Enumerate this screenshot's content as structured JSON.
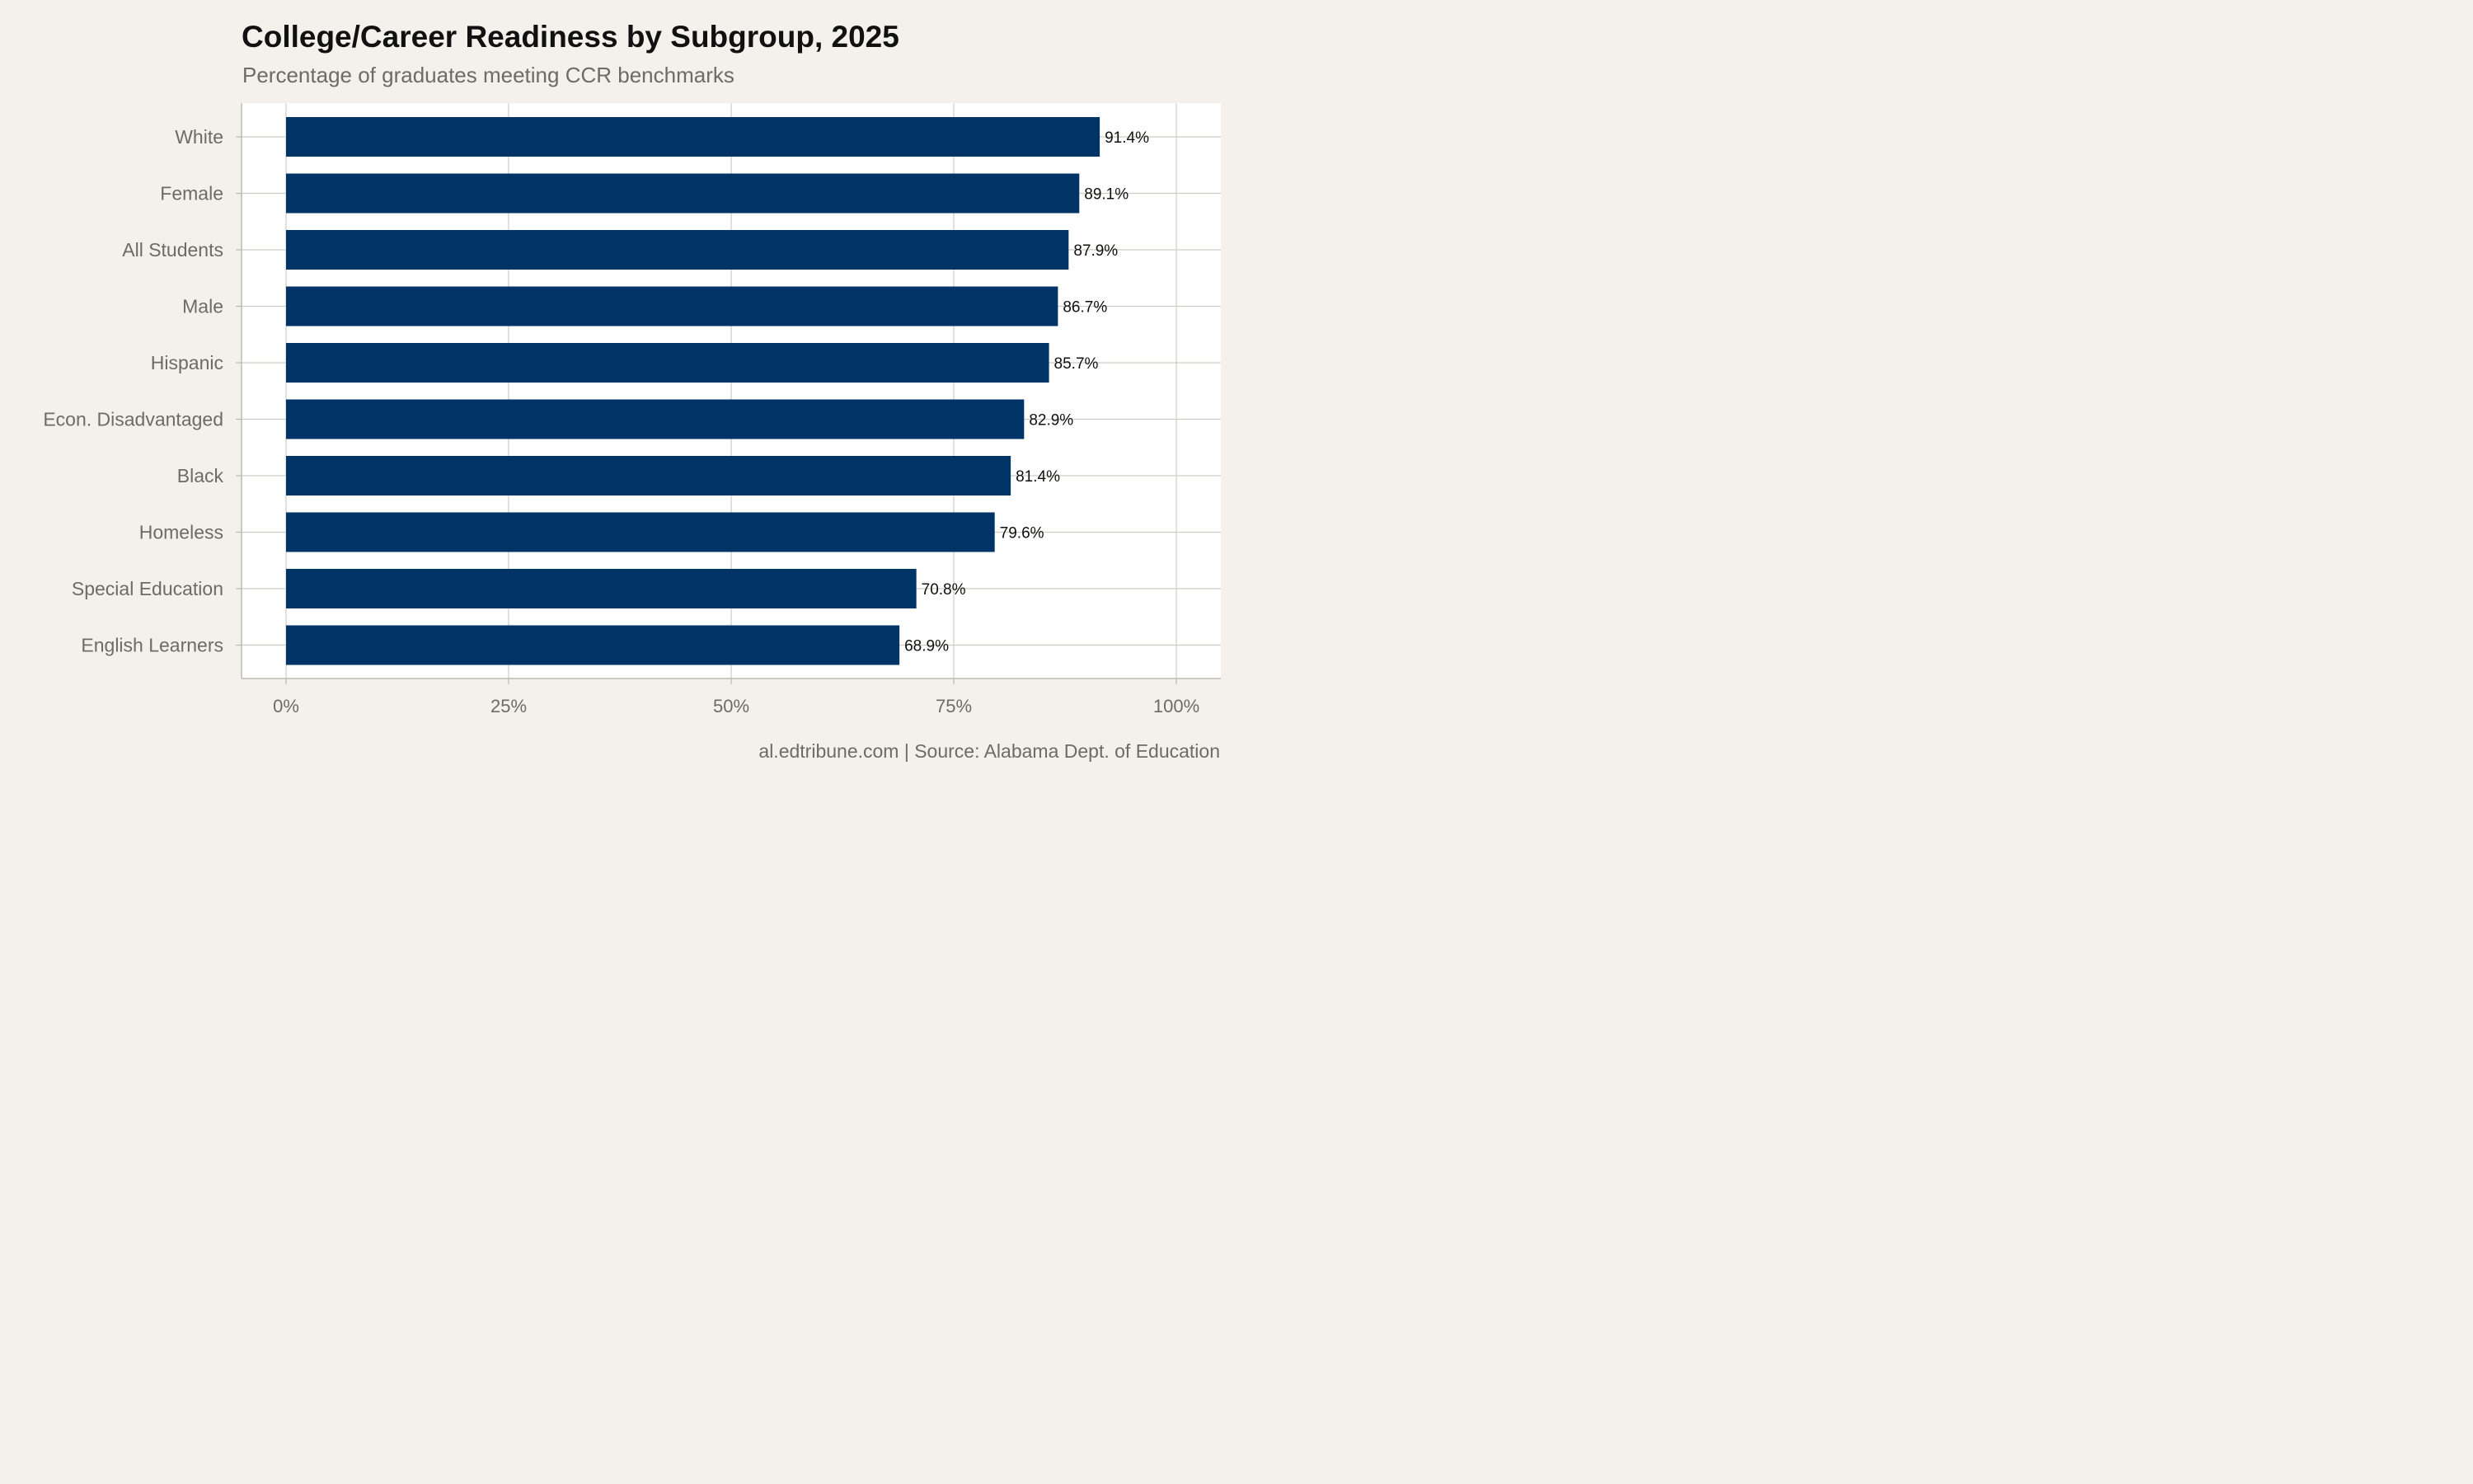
{
  "chart_data": {
    "type": "bar",
    "orientation": "horizontal",
    "title": "College/Career Readiness by Subgroup, 2025",
    "subtitle": "Percentage of graduates meeting CCR benchmarks",
    "caption": "al.edtribune.com | Source: Alabama Dept. of Education",
    "categories": [
      "White",
      "Female",
      "All Students",
      "Male",
      "Hispanic",
      "Econ. Disadvantaged",
      "Black",
      "Homeless",
      "Special Education",
      "English Learners"
    ],
    "values": [
      91.4,
      89.1,
      87.9,
      86.7,
      85.7,
      82.9,
      81.4,
      79.6,
      70.8,
      68.9
    ],
    "value_labels": [
      "91.4%",
      "89.1%",
      "87.9%",
      "86.7%",
      "85.7%",
      "82.9%",
      "81.4%",
      "79.6%",
      "70.8%",
      "68.9%"
    ],
    "x_ticks": [
      0,
      25,
      50,
      75,
      100
    ],
    "x_tick_labels": [
      "0%",
      "25%",
      "50%",
      "75%",
      "100%"
    ],
    "xlim": [
      -5,
      105
    ],
    "xlabel": "",
    "ylabel": "",
    "grid": true,
    "legend": "none",
    "colors": {
      "bar": "#003366",
      "panel": "#ffffff",
      "background": "#f4f1ec",
      "grid": "#cfccc4",
      "axis": "#bdbab2"
    }
  }
}
